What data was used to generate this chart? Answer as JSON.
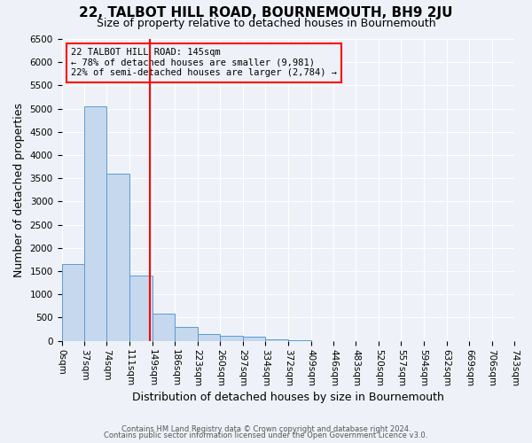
{
  "title": "22, TALBOT HILL ROAD, BOURNEMOUTH, BH9 2JU",
  "subtitle": "Size of property relative to detached houses in Bournemouth",
  "xlabel": "Distribution of detached houses by size in Bournemouth",
  "ylabel": "Number of detached properties",
  "bar_values": [
    1650,
    5050,
    3600,
    1400,
    580,
    300,
    150,
    100,
    80,
    40,
    20,
    0,
    0,
    0,
    0,
    0,
    0,
    0,
    0,
    0
  ],
  "bin_edges": [
    0,
    37,
    74,
    111,
    149,
    186,
    223,
    260,
    297,
    334,
    372,
    409,
    446,
    483,
    520,
    557,
    594,
    632,
    669,
    706,
    743
  ],
  "tick_labels": [
    "0sqm",
    "37sqm",
    "74sqm",
    "111sqm",
    "149sqm",
    "186sqm",
    "223sqm",
    "260sqm",
    "297sqm",
    "334sqm",
    "372sqm",
    "409sqm",
    "446sqm",
    "483sqm",
    "520sqm",
    "557sqm",
    "594sqm",
    "632sqm",
    "669sqm",
    "706sqm",
    "743sqm"
  ],
  "bar_color": "#c5d8ed",
  "bar_edge_color": "#5b9bd5",
  "vline_x": 145,
  "vline_color": "red",
  "annotation_box_text": "22 TALBOT HILL ROAD: 145sqm\n← 78% of detached houses are smaller (9,981)\n22% of semi-detached houses are larger (2,784) →",
  "annotation_box_color": "red",
  "ylim": [
    0,
    6500
  ],
  "yticks": [
    0,
    500,
    1000,
    1500,
    2000,
    2500,
    3000,
    3500,
    4000,
    4500,
    5000,
    5500,
    6000,
    6500
  ],
  "background_color": "#eef2f8",
  "footer_line1": "Contains HM Land Registry data © Crown copyright and database right 2024.",
  "footer_line2": "Contains public sector information licensed under the Open Government Licence v3.0.",
  "title_fontsize": 11,
  "subtitle_fontsize": 9,
  "xlabel_fontsize": 9,
  "ylabel_fontsize": 9,
  "tick_fontsize": 7.5,
  "grid_color": "#ffffff",
  "figsize": [
    6.0,
    5.0
  ],
  "dpi": 100
}
